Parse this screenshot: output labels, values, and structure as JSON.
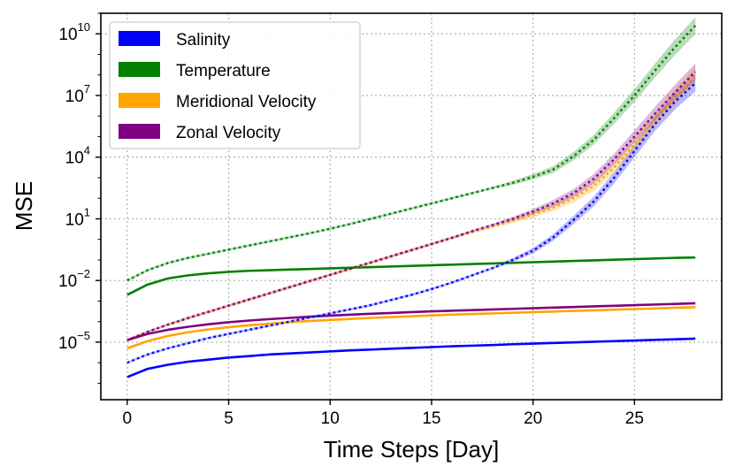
{
  "chart_data": {
    "type": "line",
    "xlabel": "Time Steps [Day]",
    "ylabel": "MSE",
    "xlim": [
      -1.3,
      29.3
    ],
    "ylog_range": [
      -7.8,
      11.0
    ],
    "xticks": [
      0,
      5,
      10,
      15,
      20,
      25
    ],
    "yticks": [
      {
        "base": "10",
        "exp": "10",
        "value": 10
      },
      {
        "base": "10",
        "exp": "7",
        "value": 7
      },
      {
        "base": "10",
        "exp": "4",
        "value": 4
      },
      {
        "base": "10",
        "exp": "1",
        "value": 1
      },
      {
        "base": "10",
        "exp": "−2",
        "value": -2
      },
      {
        "base": "10",
        "exp": "−5",
        "value": -5
      }
    ],
    "grid": true,
    "legend_position": "top-left",
    "legend": [
      "Salinity",
      "Temperature",
      "Meridional Velocity",
      "Zonal Velocity"
    ],
    "colors": {
      "Salinity": "#0000ff",
      "Temperature": "#008000",
      "Meridional Velocity": "#ffa500",
      "Zonal Velocity": "#800080"
    },
    "x": [
      0,
      1,
      2,
      3,
      4,
      5,
      6,
      7,
      8,
      9,
      10,
      11,
      12,
      13,
      14,
      15,
      16,
      17,
      18,
      19,
      20,
      21,
      22,
      23,
      24,
      25,
      26,
      27,
      28
    ],
    "series": [
      {
        "name": "Salinity",
        "style": "solid",
        "log10_mse": [
          -6.7,
          -6.3,
          -6.1,
          -5.95,
          -5.85,
          -5.75,
          -5.68,
          -5.6,
          -5.55,
          -5.5,
          -5.45,
          -5.4,
          -5.36,
          -5.32,
          -5.28,
          -5.24,
          -5.2,
          -5.17,
          -5.14,
          -5.1,
          -5.07,
          -5.04,
          -5.01,
          -4.98,
          -4.95,
          -4.92,
          -4.89,
          -4.86,
          -4.83
        ]
      },
      {
        "name": "Temperature",
        "style": "solid",
        "log10_mse": [
          -2.7,
          -2.2,
          -1.9,
          -1.75,
          -1.65,
          -1.58,
          -1.53,
          -1.5,
          -1.47,
          -1.44,
          -1.41,
          -1.38,
          -1.35,
          -1.32,
          -1.29,
          -1.26,
          -1.23,
          -1.2,
          -1.17,
          -1.14,
          -1.11,
          -1.08,
          -1.05,
          -1.02,
          -0.99,
          -0.96,
          -0.93,
          -0.9,
          -0.88
        ]
      },
      {
        "name": "Meridional Velocity",
        "style": "solid",
        "log10_mse": [
          -5.3,
          -4.95,
          -4.7,
          -4.52,
          -4.38,
          -4.27,
          -4.18,
          -4.1,
          -4.03,
          -3.97,
          -3.92,
          -3.87,
          -3.82,
          -3.78,
          -3.74,
          -3.7,
          -3.66,
          -3.63,
          -3.6,
          -3.57,
          -3.54,
          -3.51,
          -3.48,
          -3.45,
          -3.42,
          -3.39,
          -3.36,
          -3.33,
          -3.3
        ]
      },
      {
        "name": "Zonal Velocity",
        "style": "solid",
        "log10_mse": [
          -4.9,
          -4.6,
          -4.4,
          -4.25,
          -4.13,
          -4.03,
          -3.95,
          -3.88,
          -3.82,
          -3.76,
          -3.71,
          -3.66,
          -3.62,
          -3.58,
          -3.54,
          -3.5,
          -3.47,
          -3.44,
          -3.41,
          -3.38,
          -3.35,
          -3.32,
          -3.29,
          -3.26,
          -3.23,
          -3.2,
          -3.17,
          -3.14,
          -3.11
        ]
      },
      {
        "name": "Salinity",
        "style": "dotted",
        "log10_mse": [
          -6.0,
          -5.6,
          -5.3,
          -5.05,
          -4.8,
          -4.6,
          -4.4,
          -4.2,
          -4.0,
          -3.8,
          -3.6,
          -3.4,
          -3.2,
          -2.95,
          -2.7,
          -2.42,
          -2.1,
          -1.75,
          -1.4,
          -1.0,
          -0.55,
          0.1,
          0.95,
          1.85,
          3.0,
          4.3,
          5.6,
          6.7,
          7.6
        ]
      },
      {
        "name": "Temperature",
        "style": "dotted",
        "log10_mse": [
          -2.0,
          -1.5,
          -1.15,
          -0.9,
          -0.7,
          -0.5,
          -0.3,
          -0.1,
          0.1,
          0.3,
          0.52,
          0.75,
          1.0,
          1.25,
          1.5,
          1.75,
          2.0,
          2.25,
          2.5,
          2.75,
          3.05,
          3.4,
          4.05,
          4.85,
          5.9,
          7.0,
          8.2,
          9.35,
          10.4
        ]
      },
      {
        "name": "Meridional Velocity",
        "style": "dotted",
        "log10_mse": [
          -4.9,
          -4.5,
          -4.15,
          -3.85,
          -3.55,
          -3.25,
          -2.95,
          -2.65,
          -2.35,
          -2.05,
          -1.75,
          -1.45,
          -1.15,
          -0.85,
          -0.55,
          -0.25,
          0.05,
          0.35,
          0.62,
          0.9,
          1.2,
          1.55,
          2.0,
          2.6,
          3.5,
          4.6,
          5.8,
          6.9,
          7.95
        ]
      },
      {
        "name": "Zonal Velocity",
        "style": "dotted",
        "log10_mse": [
          -4.9,
          -4.5,
          -4.15,
          -3.82,
          -3.52,
          -3.22,
          -2.92,
          -2.62,
          -2.32,
          -2.02,
          -1.72,
          -1.42,
          -1.12,
          -0.82,
          -0.52,
          -0.22,
          0.08,
          0.4,
          0.7,
          1.0,
          1.35,
          1.75,
          2.25,
          2.95,
          3.9,
          5.0,
          6.1,
          7.15,
          8.15
        ]
      }
    ]
  }
}
